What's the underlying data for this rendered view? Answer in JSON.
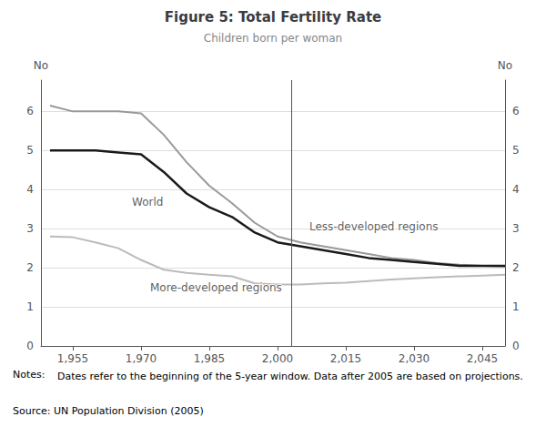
{
  "chart_data": {
    "type": "line",
    "title": "Figure 5: Total Fertility Rate",
    "subtitle": "Children born per woman",
    "ylabel": "No",
    "y2label": "No",
    "notes_label": "Notes:",
    "notes_text": "  Dates refer to the beginning of the 5-year window. Data after 2005 are based on projections.",
    "source": "Source: UN Population Division (2005)",
    "x": [
      1950,
      1955,
      1960,
      1965,
      1970,
      1975,
      1980,
      1985,
      1990,
      1995,
      2000,
      2005,
      2010,
      2015,
      2020,
      2025,
      2030,
      2035,
      2040,
      2045,
      2050
    ],
    "series": [
      {
        "name": "World",
        "color": "#1a1a1a",
        "values": [
          5.0,
          5.0,
          5.0,
          4.95,
          4.9,
          4.45,
          3.9,
          3.55,
          3.3,
          2.9,
          2.65,
          2.55,
          2.45,
          2.35,
          2.25,
          2.2,
          2.15,
          2.1,
          2.05,
          2.05,
          2.05
        ]
      },
      {
        "name": "Less-developed regions",
        "color": "#999999",
        "values": [
          6.15,
          6.0,
          6.0,
          6.0,
          5.95,
          5.4,
          4.7,
          4.1,
          3.65,
          3.15,
          2.8,
          2.65,
          2.55,
          2.45,
          2.35,
          2.25,
          2.2,
          2.12,
          2.08,
          2.05,
          2.03
        ]
      },
      {
        "name": "More-developed regions",
        "color": "#bbbbbb",
        "values": [
          2.8,
          2.78,
          2.65,
          2.5,
          2.2,
          1.95,
          1.87,
          1.82,
          1.78,
          1.6,
          1.57,
          1.57,
          1.6,
          1.62,
          1.66,
          1.7,
          1.73,
          1.76,
          1.78,
          1.8,
          1.82
        ]
      }
    ],
    "annotations": [
      {
        "text": "World",
        "x": 1968,
        "y": 3.55
      },
      {
        "text": "Less-developed regions",
        "x": 2007,
        "y": 2.9
      },
      {
        "text": "More-developed regions",
        "x": 1972,
        "y": 1.35
      }
    ],
    "vline": {
      "x": 2003,
      "color": "#555555"
    },
    "xlim": [
      1948,
      2050
    ],
    "xticks": [
      1955,
      1970,
      1985,
      2000,
      2015,
      2030,
      2045
    ],
    "ylim": [
      0,
      6.8
    ],
    "yticks": [
      0,
      1,
      2,
      3,
      4,
      5,
      6
    ],
    "y2lim": [
      0,
      6.8
    ],
    "y2ticks": [
      0,
      1,
      2,
      3,
      4,
      5,
      6
    ],
    "grid": true
  }
}
